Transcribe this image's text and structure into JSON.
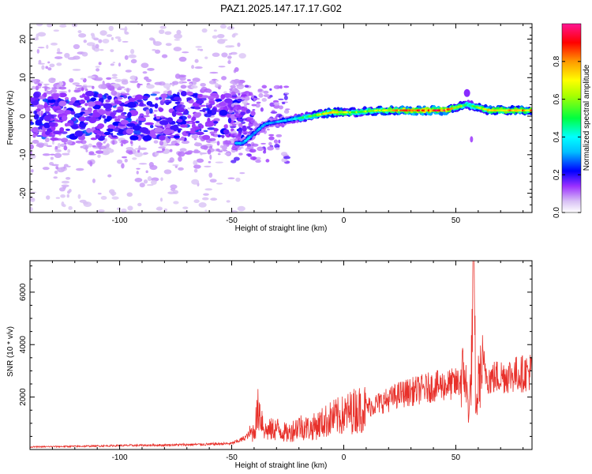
{
  "chart_data": [
    {
      "type": "heatmap",
      "title": "PAZ1.2025.147.17.17.G02",
      "xlabel": "Height of straight line (km)",
      "ylabel": "Frequency (Hz)",
      "xlim": [
        -140,
        84
      ],
      "ylim": [
        -25,
        24
      ],
      "xticks": [
        -100,
        -50,
        0,
        50
      ],
      "yticks": [
        -20,
        -10,
        0,
        10,
        20
      ],
      "colorbar": {
        "label": "Normalized spectral amplitude",
        "range": [
          0,
          1
        ],
        "ticks": [
          0.0,
          0.2,
          0.4,
          0.6,
          0.8
        ],
        "colors": [
          "#ffffff",
          "#c8a8f0",
          "#8a2be2",
          "#0000ff",
          "#00bfff",
          "#00ffff",
          "#00ff00",
          "#ffff00",
          "#ff8c00",
          "#ff0000",
          "#ff1493"
        ]
      },
      "ridge": {
        "description_points": [
          {
            "x": -45,
            "y": -7,
            "v": 0.35
          },
          {
            "x": -35,
            "y": -2,
            "v": 0.3
          },
          {
            "x": -25,
            "y": -1,
            "v": 0.35
          },
          {
            "x": -15,
            "y": 0,
            "v": 0.55
          },
          {
            "x": -5,
            "y": 1,
            "v": 0.75
          },
          {
            "x": 5,
            "y": 1,
            "v": 0.6
          },
          {
            "x": 15,
            "y": 1.5,
            "v": 0.65
          },
          {
            "x": 30,
            "y": 1.5,
            "v": 0.9
          },
          {
            "x": 45,
            "y": 1.5,
            "v": 0.9
          },
          {
            "x": 55,
            "y": 3,
            "v": 0.5
          },
          {
            "x": 65,
            "y": 1.5,
            "v": 0.75
          },
          {
            "x": 80,
            "y": 1.5,
            "v": 0.8
          }
        ]
      }
    },
    {
      "type": "line",
      "xlabel": "Height of straight line (km)",
      "ylabel": "SNR (10 * v/v)",
      "xlim": [
        -140,
        84
      ],
      "ylim": [
        0,
        7200
      ],
      "xticks": [
        -100,
        -50,
        0,
        50
      ],
      "yticks": [
        2000,
        4000,
        6000
      ],
      "color": "#e8302a",
      "series": [
        {
          "x": [
            -140,
            -120,
            -100,
            -80,
            -60,
            -50,
            -45,
            -40,
            -38,
            -35,
            -30,
            -25,
            -20,
            -15,
            -10,
            -5,
            0,
            5,
            10,
            15,
            20,
            25,
            30,
            35,
            40,
            45,
            50,
            52,
            54,
            55,
            56,
            57,
            58,
            59,
            60,
            62,
            65,
            70,
            75,
            80,
            84
          ],
          "y": [
            100,
            120,
            150,
            170,
            200,
            230,
            400,
            700,
            1600,
            700,
            800,
            600,
            900,
            800,
            1000,
            1200,
            1300,
            1500,
            1600,
            1750,
            1900,
            2100,
            2200,
            2300,
            2400,
            2450,
            2500,
            2600,
            3000,
            2000,
            1500,
            3200,
            7200,
            1200,
            2500,
            3200,
            2700,
            2800,
            2850,
            2900,
            3000
          ]
        }
      ]
    }
  ]
}
